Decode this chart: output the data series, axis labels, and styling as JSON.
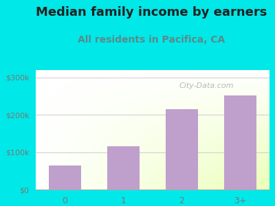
{
  "title": "Median family income by earners",
  "subtitle": "All residents in Pacifica, CA",
  "categories": [
    "0",
    "1",
    "2",
    "3+"
  ],
  "values": [
    65000,
    115000,
    215000,
    252000
  ],
  "bar_color": "#bf9fcc",
  "background_outer": "#00e8e8",
  "yticks": [
    0,
    100000,
    200000,
    300000
  ],
  "ytick_labels": [
    "$0",
    "$100k",
    "$200k",
    "$300k"
  ],
  "ylim": [
    0,
    320000
  ],
  "title_fontsize": 13,
  "subtitle_fontsize": 10,
  "title_color": "#222222",
  "subtitle_color": "#5a8a8a",
  "watermark": "City-Data.com",
  "watermark_color": "#aaaaaa",
  "tick_color": "#777777",
  "grid_color": "#cccccc"
}
